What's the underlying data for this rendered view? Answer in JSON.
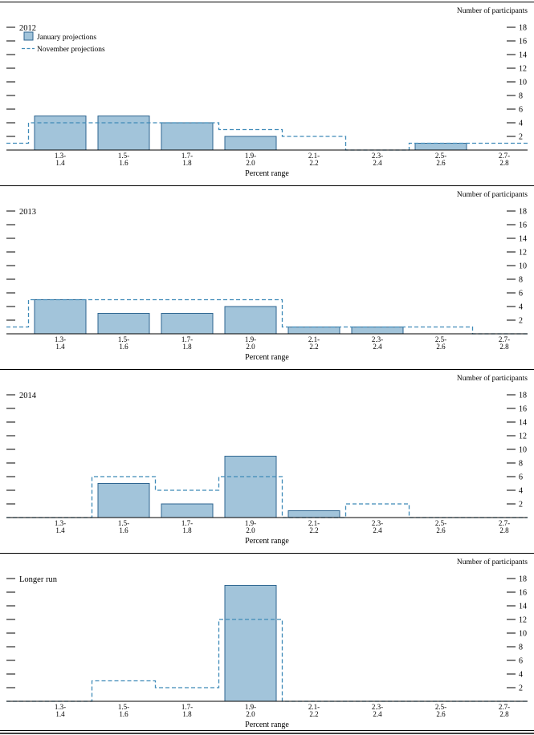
{
  "figure": {
    "legend": {
      "january_label": "January projections",
      "november_label": "November projections"
    },
    "colors": {
      "bar_fill": "#a2c4da",
      "bar_stroke": "#2e6590",
      "november_line": "#3f8ab8",
      "axis": "#000000"
    }
  },
  "chart_data": [
    {
      "type": "bar",
      "title": "2012",
      "xlabel": "Percent range",
      "ylabel": "Number of participants",
      "ylim": [
        0,
        19
      ],
      "yticks": [
        2,
        4,
        6,
        8,
        10,
        12,
        14,
        16,
        18
      ],
      "grid": false,
      "legend_position": "top-left",
      "show_legend": true,
      "categories": [
        "1.3-1.4",
        "1.5-1.6",
        "1.7-1.8",
        "1.9-2.0",
        "2.1-2.2",
        "2.3-2.4",
        "2.5-2.6",
        "2.7-2.8"
      ],
      "series": [
        {
          "name": "January projections",
          "style": "bar",
          "values": [
            5,
            5,
            4,
            2,
            0,
            0,
            1,
            0
          ]
        },
        {
          "name": "November projections",
          "style": "dashed-step",
          "pre": 1,
          "values": [
            4,
            4,
            4,
            3,
            2,
            0,
            1,
            1
          ]
        }
      ]
    },
    {
      "type": "bar",
      "title": "2013",
      "xlabel": "Percent range",
      "ylabel": "Number of participants",
      "ylim": [
        0,
        19
      ],
      "yticks": [
        2,
        4,
        6,
        8,
        10,
        12,
        14,
        16,
        18
      ],
      "grid": false,
      "legend_position": "none",
      "show_legend": false,
      "categories": [
        "1.3-1.4",
        "1.5-1.6",
        "1.7-1.8",
        "1.9-2.0",
        "2.1-2.2",
        "2.3-2.4",
        "2.5-2.6",
        "2.7-2.8"
      ],
      "series": [
        {
          "name": "January projections",
          "style": "bar",
          "values": [
            5,
            3,
            3,
            4,
            1,
            1,
            0,
            0
          ]
        },
        {
          "name": "November projections",
          "style": "dashed-step",
          "pre": 1,
          "values": [
            5,
            5,
            5,
            5,
            1,
            1,
            1,
            0
          ]
        }
      ]
    },
    {
      "type": "bar",
      "title": "2014",
      "xlabel": "Percent range",
      "ylabel": "Number of participants",
      "ylim": [
        0,
        19
      ],
      "yticks": [
        2,
        4,
        6,
        8,
        10,
        12,
        14,
        16,
        18
      ],
      "grid": false,
      "legend_position": "none",
      "show_legend": false,
      "categories": [
        "1.3-1.4",
        "1.5-1.6",
        "1.7-1.8",
        "1.9-2.0",
        "2.1-2.2",
        "2.3-2.4",
        "2.5-2.6",
        "2.7-2.8"
      ],
      "series": [
        {
          "name": "January projections",
          "style": "bar",
          "values": [
            0,
            5,
            2,
            9,
            1,
            0,
            0,
            0
          ]
        },
        {
          "name": "November projections",
          "style": "dashed-step",
          "pre": 0,
          "values": [
            0,
            6,
            4,
            6,
            0,
            2,
            0,
            0
          ]
        }
      ]
    },
    {
      "type": "bar",
      "title": "Longer run",
      "xlabel": "Percent range",
      "ylabel": "Number of participants",
      "ylim": [
        0,
        19
      ],
      "yticks": [
        2,
        4,
        6,
        8,
        10,
        12,
        14,
        16,
        18
      ],
      "grid": false,
      "legend_position": "none",
      "show_legend": false,
      "categories": [
        "1.3-1.4",
        "1.5-1.6",
        "1.7-1.8",
        "1.9-2.0",
        "2.1-2.2",
        "2.3-2.4",
        "2.5-2.6",
        "2.7-2.8"
      ],
      "series": [
        {
          "name": "January projections",
          "style": "bar",
          "values": [
            0,
            0,
            0,
            17,
            0,
            0,
            0,
            0
          ]
        },
        {
          "name": "November projections",
          "style": "dashed-step",
          "pre": 0,
          "values": [
            0,
            3,
            2,
            12,
            0,
            0,
            0,
            0
          ]
        }
      ]
    }
  ]
}
